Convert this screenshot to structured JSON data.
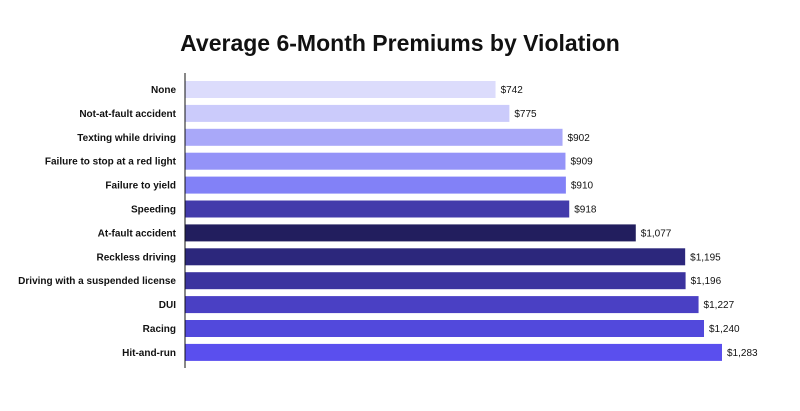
{
  "chart_data": {
    "type": "bar",
    "orientation": "horizontal",
    "title": "Average 6-Month Premiums by Violation",
    "xlabel": "",
    "ylabel": "",
    "xlim": [
      0,
      1330
    ],
    "grid": false,
    "legend": "none",
    "categories": [
      "None",
      "Not-at-fault accident",
      "Texting while driving",
      "Failure to stop at a red light",
      "Failure to yield",
      "Speeding",
      "At-fault accident",
      "Reckless driving",
      "Driving with a suspended license",
      "DUI",
      "Racing",
      "Hit-and-run"
    ],
    "values": [
      742,
      775,
      902,
      909,
      910,
      918,
      1077,
      1195,
      1196,
      1227,
      1240,
      1283
    ],
    "value_labels": [
      "$742",
      "$775",
      "$902",
      "$909",
      "$910",
      "$918",
      "$1,077",
      "$1,195",
      "$1,196",
      "$1,227",
      "$1,240",
      "$1,283"
    ],
    "colors": [
      "#dcdcfc",
      "#cbcbfb",
      "#a9a8f9",
      "#9493f8",
      "#8281f7",
      "#433bab",
      "#221e5e",
      "#2c277c",
      "#3b339f",
      "#4a40c4",
      "#5249dc",
      "#5a4fee"
    ]
  }
}
